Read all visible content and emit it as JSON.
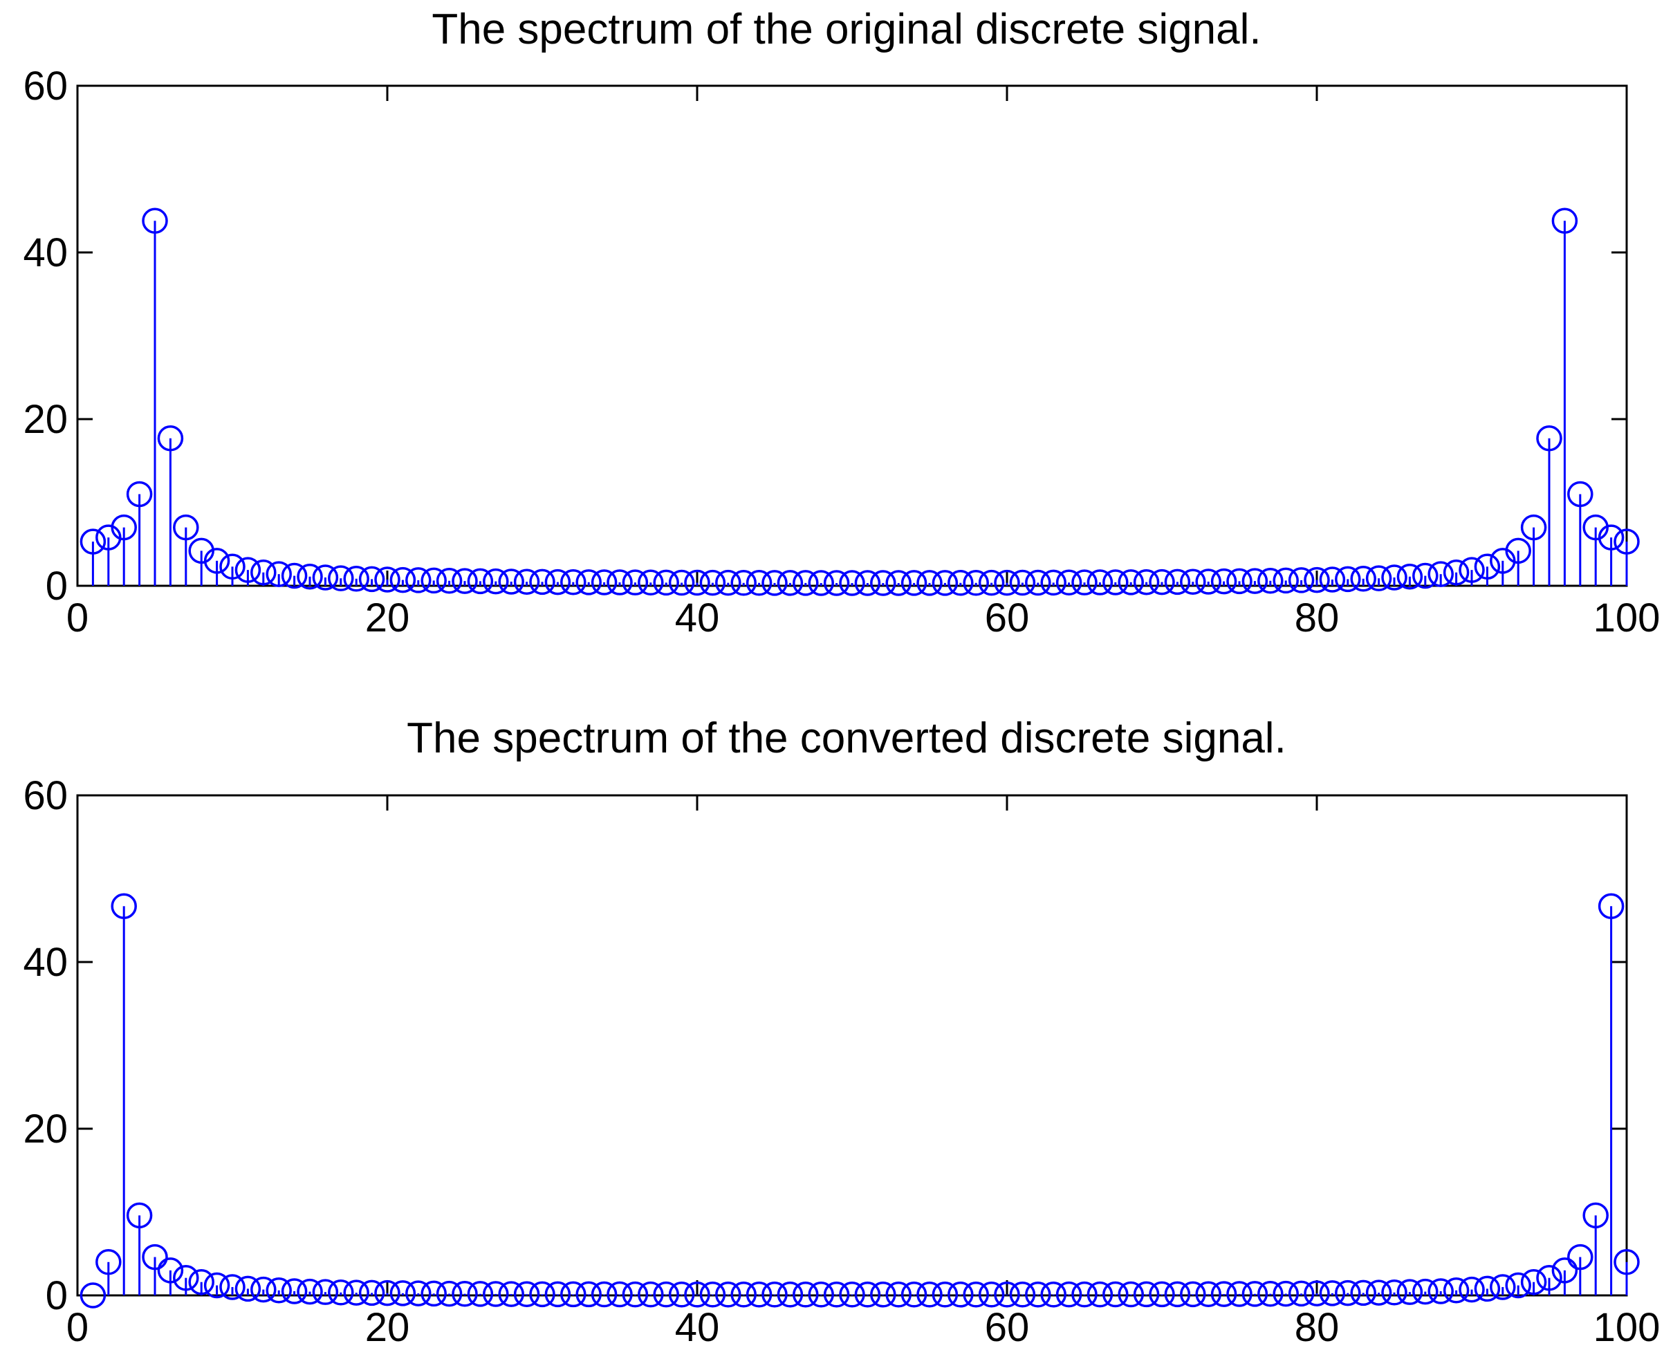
{
  "chart_data": [
    {
      "type": "stem",
      "title": "The spectrum of the original discrete signal.",
      "xlabel": "",
      "ylabel": "",
      "xlim": [
        0,
        100
      ],
      "ylim": [
        0,
        60
      ],
      "xticks": [
        0,
        20,
        40,
        60,
        80,
        100
      ],
      "yticks": [
        0,
        20,
        40,
        60
      ],
      "xtick_labels": [
        "0",
        "20",
        "40",
        "60",
        "80",
        "100"
      ],
      "ytick_labels": [
        "0",
        "20",
        "40",
        "60"
      ],
      "grid": false,
      "color": "#0000ff",
      "marker": "circle",
      "x": [
        1,
        2,
        3,
        4,
        5,
        6,
        7,
        8,
        9,
        10,
        11,
        12,
        13,
        14,
        15,
        16,
        17,
        18,
        19,
        20,
        21,
        22,
        23,
        24,
        25,
        26,
        27,
        28,
        29,
        30,
        31,
        32,
        33,
        34,
        35,
        36,
        37,
        38,
        39,
        40,
        41,
        42,
        43,
        44,
        45,
        46,
        47,
        48,
        49,
        50,
        51,
        52,
        53,
        54,
        55,
        56,
        57,
        58,
        59,
        60,
        61,
        62,
        63,
        64,
        65,
        66,
        67,
        68,
        69,
        70,
        71,
        72,
        73,
        74,
        75,
        76,
        77,
        78,
        79,
        80,
        81,
        82,
        83,
        84,
        85,
        86,
        87,
        88,
        89,
        90,
        91,
        92,
        93,
        94,
        95,
        96,
        97,
        98,
        99,
        100
      ],
      "values": [
        5.3,
        5.8,
        7.0,
        11.0,
        43.8,
        17.7,
        7.0,
        4.2,
        3.0,
        2.3,
        1.9,
        1.6,
        1.4,
        1.2,
        1.1,
        1.0,
        0.9,
        0.85,
        0.8,
        0.75,
        0.7,
        0.67,
        0.63,
        0.6,
        0.57,
        0.55,
        0.53,
        0.5,
        0.48,
        0.47,
        0.45,
        0.44,
        0.43,
        0.42,
        0.41,
        0.4,
        0.39,
        0.38,
        0.37,
        0.37,
        0.36,
        0.36,
        0.35,
        0.35,
        0.34,
        0.34,
        0.34,
        0.33,
        0.33,
        0.33,
        0.33,
        0.33,
        0.33,
        0.34,
        0.34,
        0.34,
        0.35,
        0.35,
        0.36,
        0.36,
        0.37,
        0.37,
        0.38,
        0.39,
        0.4,
        0.41,
        0.42,
        0.43,
        0.44,
        0.45,
        0.47,
        0.48,
        0.5,
        0.53,
        0.55,
        0.57,
        0.6,
        0.63,
        0.67,
        0.7,
        0.75,
        0.8,
        0.85,
        0.9,
        1.0,
        1.1,
        1.2,
        1.4,
        1.6,
        1.9,
        2.3,
        3.0,
        4.2,
        7.0,
        17.7,
        43.8,
        11.0,
        7.0,
        5.8,
        5.3
      ]
    },
    {
      "type": "stem",
      "title": "The spectrum of the converted discrete signal.",
      "xlabel": "",
      "ylabel": "",
      "xlim": [
        0,
        100
      ],
      "ylim": [
        0,
        60
      ],
      "xticks": [
        0,
        20,
        40,
        60,
        80,
        100
      ],
      "yticks": [
        0,
        20,
        40,
        60
      ],
      "xtick_labels": [
        "0",
        "20",
        "40",
        "60",
        "80",
        "100"
      ],
      "ytick_labels": [
        "0",
        "20",
        "40",
        "60"
      ],
      "grid": false,
      "color": "#0000ff",
      "marker": "circle",
      "x": [
        1,
        2,
        3,
        4,
        5,
        6,
        7,
        8,
        9,
        10,
        11,
        12,
        13,
        14,
        15,
        16,
        17,
        18,
        19,
        20,
        21,
        22,
        23,
        24,
        25,
        26,
        27,
        28,
        29,
        30,
        31,
        32,
        33,
        34,
        35,
        36,
        37,
        38,
        39,
        40,
        41,
        42,
        43,
        44,
        45,
        46,
        47,
        48,
        49,
        50,
        51,
        52,
        53,
        54,
        55,
        56,
        57,
        58,
        59,
        60,
        61,
        62,
        63,
        64,
        65,
        66,
        67,
        68,
        69,
        70,
        71,
        72,
        73,
        74,
        75,
        76,
        77,
        78,
        79,
        80,
        81,
        82,
        83,
        84,
        85,
        86,
        87,
        88,
        89,
        90,
        91,
        92,
        93,
        94,
        95,
        96,
        97,
        98,
        99,
        100
      ],
      "values": [
        0.0,
        4.0,
        46.7,
        9.6,
        4.6,
        3.0,
        2.1,
        1.6,
        1.2,
        1.0,
        0.8,
        0.7,
        0.6,
        0.5,
        0.45,
        0.4,
        0.35,
        0.32,
        0.3,
        0.28,
        0.26,
        0.24,
        0.22,
        0.2,
        0.19,
        0.18,
        0.17,
        0.16,
        0.15,
        0.14,
        0.14,
        0.13,
        0.13,
        0.12,
        0.12,
        0.11,
        0.11,
        0.11,
        0.1,
        0.1,
        0.1,
        0.1,
        0.1,
        0.1,
        0.1,
        0.1,
        0.1,
        0.1,
        0.1,
        0.1,
        0.1,
        0.1,
        0.1,
        0.1,
        0.1,
        0.1,
        0.1,
        0.1,
        0.1,
        0.1,
        0.1,
        0.1,
        0.1,
        0.11,
        0.11,
        0.11,
        0.12,
        0.12,
        0.13,
        0.13,
        0.14,
        0.14,
        0.15,
        0.16,
        0.17,
        0.18,
        0.19,
        0.2,
        0.22,
        0.24,
        0.26,
        0.28,
        0.3,
        0.32,
        0.35,
        0.4,
        0.45,
        0.5,
        0.6,
        0.7,
        0.8,
        1.0,
        1.2,
        1.6,
        2.1,
        3.0,
        4.6,
        9.6,
        46.7,
        4.0
      ]
    }
  ]
}
